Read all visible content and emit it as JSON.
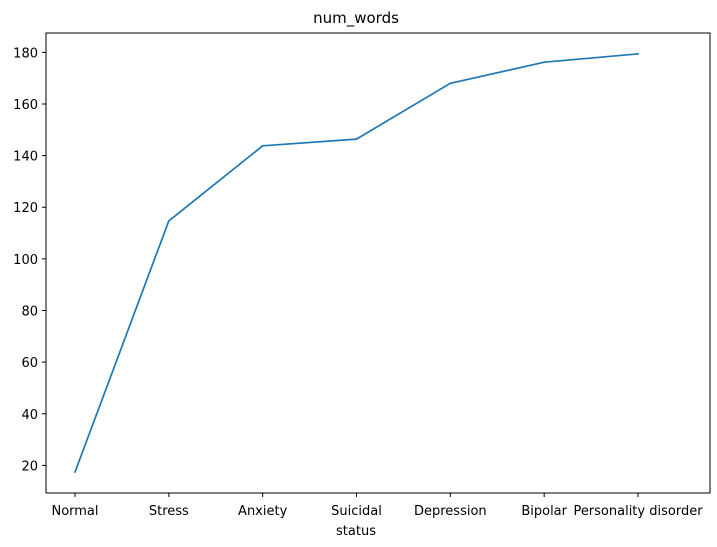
{
  "chart_data": {
    "type": "line",
    "title": "num_words",
    "xlabel": "status",
    "ylabel": "",
    "categories": [
      "Normal",
      "Stress",
      "Anxiety",
      "Suicidal",
      "Depression",
      "Bipolar",
      "Personality disorder"
    ],
    "series": [
      {
        "values": [
          17.4,
          114.7,
          143.8,
          146.4,
          168.0,
          176.2,
          179.4
        ],
        "color": "#1f77b4"
      }
    ],
    "yticks": [
      20,
      40,
      60,
      80,
      100,
      120,
      140,
      160,
      180
    ],
    "ylim": [
      9.3,
      187.5
    ],
    "grid": false
  }
}
